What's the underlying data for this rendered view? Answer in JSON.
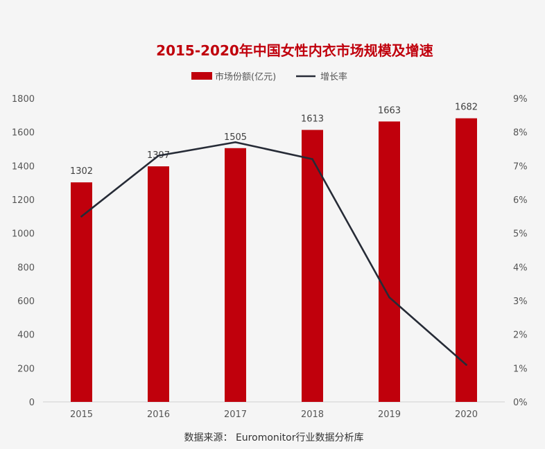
{
  "chart_data": {
    "type": "bar",
    "title": "2015-2020年中国女性内衣市场规模及增速",
    "categories": [
      "2015",
      "2016",
      "2017",
      "2018",
      "2019",
      "2020"
    ],
    "series": [
      {
        "name": "市场份额(亿元)",
        "type": "bar",
        "axis": "left",
        "color": "#c0000c",
        "values": [
          1302,
          1397,
          1505,
          1613,
          1663,
          1682
        ],
        "labels": [
          "1302",
          "1397",
          "1505",
          "1613",
          "1663",
          "1682"
        ]
      },
      {
        "name": "增长率",
        "type": "line",
        "axis": "right",
        "color": "#262b36",
        "values": [
          5.5,
          7.3,
          7.7,
          7.2,
          3.1,
          1.1
        ]
      }
    ],
    "y_left": {
      "min": 0,
      "max": 1800,
      "ticks": [
        "0",
        "200",
        "400",
        "600",
        "800",
        "1000",
        "1200",
        "1400",
        "1600",
        "1800"
      ]
    },
    "y_right": {
      "min": 0,
      "max": 9,
      "ticks": [
        "0%",
        "1%",
        "2%",
        "3%",
        "4%",
        "5%",
        "6%",
        "7%",
        "8%",
        "9%"
      ]
    },
    "grid": false,
    "legend": "top-center",
    "source": "数据来源：  Euromonitor行业数据分析库"
  }
}
